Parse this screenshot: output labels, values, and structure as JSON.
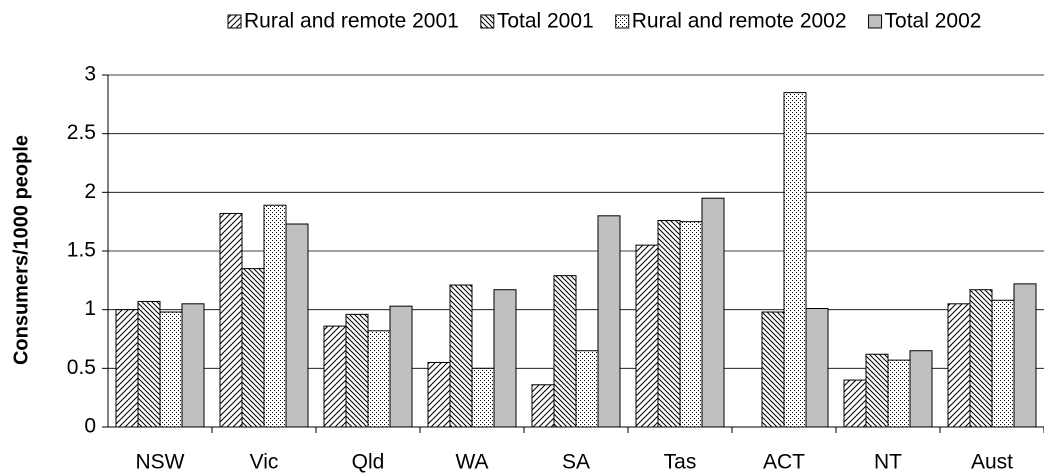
{
  "chart_data": {
    "type": "bar",
    "y_label": "Consumers/1000 people",
    "categories": [
      "NSW",
      "Vic",
      "Qld",
      "WA",
      "SA",
      "Tas",
      "ACT",
      "NT",
      "Aust"
    ],
    "series": [
      {
        "name": "Rural and remote 2001",
        "color": "#000000",
        "pattern": "diagonal",
        "values": [
          1.0,
          1.82,
          0.86,
          0.55,
          0.36,
          1.55,
          null,
          0.4,
          1.05
        ]
      },
      {
        "name": "Total 2001",
        "color": "#000000",
        "pattern": "back-diagonal",
        "values": [
          1.07,
          1.35,
          0.96,
          1.21,
          1.29,
          1.76,
          0.98,
          0.62,
          1.17
        ]
      },
      {
        "name": "Rural and remote 2002",
        "color": "#000000",
        "pattern": "dots",
        "values": [
          0.98,
          1.89,
          0.82,
          0.5,
          0.65,
          1.75,
          2.85,
          0.57,
          1.08
        ]
      },
      {
        "name": "Total 2002",
        "color": "#c0c0c0",
        "pattern": "solid",
        "values": [
          1.05,
          1.73,
          1.03,
          1.17,
          1.8,
          1.95,
          1.01,
          0.65,
          1.22
        ]
      }
    ],
    "ylim": [
      0,
      3
    ],
    "yticks": [
      0,
      0.5,
      1,
      1.5,
      2,
      2.5,
      3
    ],
    "grid": true,
    "legend": "top"
  }
}
